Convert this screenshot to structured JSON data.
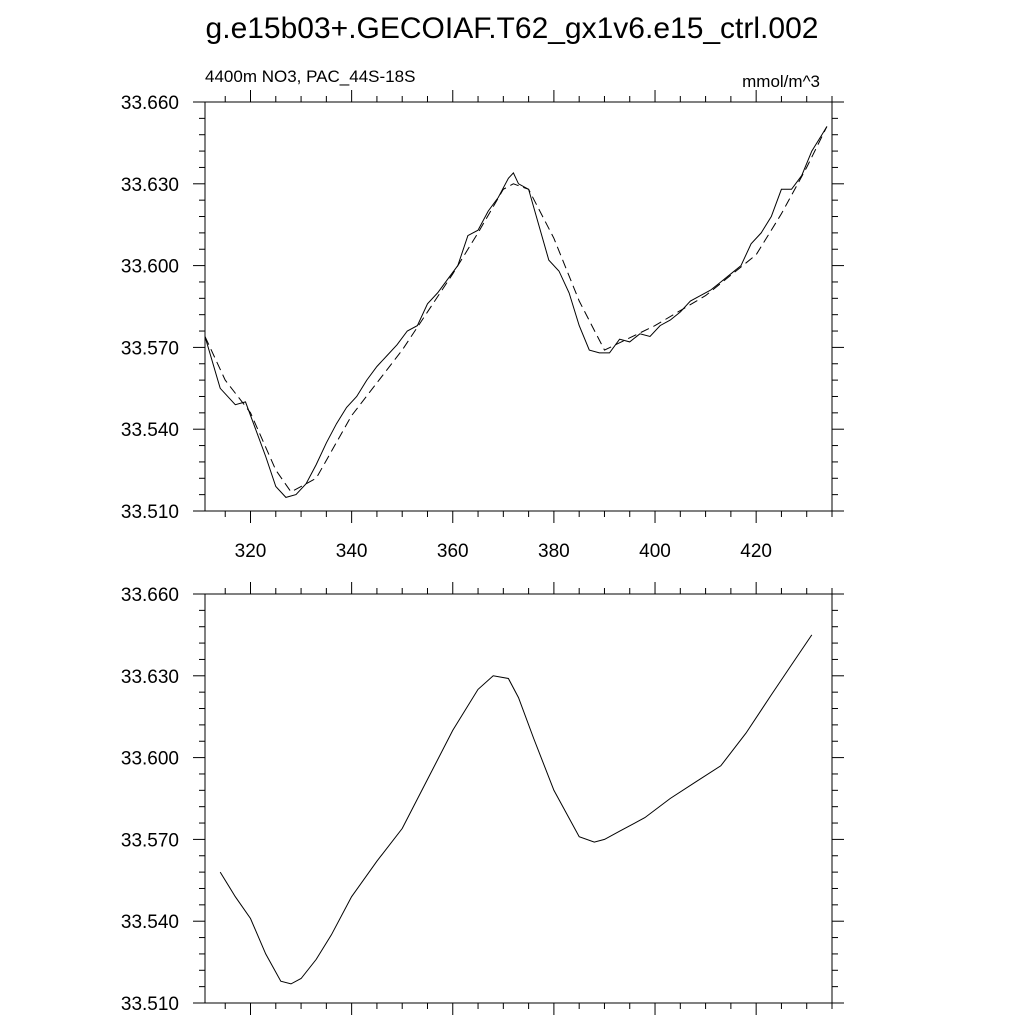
{
  "figure": {
    "title": "g.e15b03+.GECOIAF.T62_gx1v6.e15_ctrl.002"
  },
  "chart_data": [
    {
      "type": "line",
      "left_label": "4400m NO3, PAC_44S-18S",
      "right_label": "mmol/m^3",
      "xlim": [
        311,
        435
      ],
      "ylim": [
        33.51,
        33.66
      ],
      "x_ticks": [
        320,
        340,
        360,
        380,
        400,
        420
      ],
      "y_ticks": [
        "33.510",
        "33.540",
        "33.570",
        "33.600",
        "33.630",
        "33.660"
      ],
      "series": [
        {
          "style": "solid",
          "x": [
            311,
            314,
            317,
            319,
            321,
            323,
            325,
            327,
            329,
            331,
            333,
            335,
            337,
            339,
            341,
            343,
            345,
            347,
            349,
            351,
            353,
            355,
            357,
            359,
            361,
            363,
            365,
            367,
            369,
            371,
            372,
            373,
            375,
            377,
            379,
            381,
            383,
            385,
            387,
            389,
            391,
            393,
            395,
            397,
            399,
            401,
            403,
            405,
            407,
            409,
            411,
            413,
            415,
            417,
            419,
            421,
            423,
            425,
            427,
            429,
            431,
            433,
            434
          ],
          "y": [
            33.574,
            33.555,
            33.549,
            33.55,
            33.54,
            33.53,
            33.519,
            33.515,
            33.516,
            33.52,
            33.527,
            33.535,
            33.542,
            33.548,
            33.552,
            33.558,
            33.563,
            33.567,
            33.571,
            33.576,
            33.578,
            33.586,
            33.59,
            33.595,
            33.6,
            33.611,
            33.613,
            33.62,
            33.625,
            33.632,
            33.634,
            33.63,
            33.628,
            33.615,
            33.602,
            33.598,
            33.59,
            33.578,
            33.569,
            33.568,
            33.568,
            33.573,
            33.572,
            33.575,
            33.574,
            33.578,
            33.58,
            33.583,
            33.587,
            33.589,
            33.591,
            33.594,
            33.597,
            33.6,
            33.608,
            33.612,
            33.618,
            33.628,
            33.628,
            33.633,
            33.642,
            33.648,
            33.651
          ]
        },
        {
          "style": "dashed",
          "x": [
            311,
            315,
            320,
            325,
            328,
            333,
            340,
            350,
            360,
            365,
            370,
            372,
            375,
            380,
            385,
            390,
            400,
            410,
            420,
            425,
            430,
            434
          ],
          "y": [
            33.574,
            33.558,
            33.546,
            33.525,
            33.517,
            33.522,
            33.545,
            33.569,
            33.597,
            33.612,
            33.628,
            33.63,
            33.628,
            33.61,
            33.587,
            33.569,
            33.578,
            33.589,
            33.604,
            33.619,
            33.636,
            33.651
          ]
        }
      ]
    },
    {
      "type": "line",
      "xlim": [
        311,
        435
      ],
      "ylim": [
        33.51,
        33.66
      ],
      "y_ticks": [
        "33.510",
        "33.540",
        "33.570",
        "33.600",
        "33.630",
        "33.660"
      ],
      "series": [
        {
          "style": "solid",
          "x": [
            314,
            317,
            320,
            323,
            326,
            328,
            330,
            333,
            336,
            340,
            345,
            350,
            355,
            360,
            365,
            368,
            371,
            373,
            376,
            380,
            385,
            388,
            390,
            393,
            398,
            403,
            408,
            413,
            418,
            423,
            427,
            431
          ],
          "y": [
            33.558,
            33.549,
            33.541,
            33.528,
            33.518,
            33.517,
            33.519,
            33.526,
            33.535,
            33.549,
            33.562,
            33.574,
            33.592,
            33.61,
            33.625,
            33.63,
            33.629,
            33.622,
            33.607,
            33.588,
            33.571,
            33.569,
            33.57,
            33.573,
            33.578,
            33.585,
            33.591,
            33.597,
            33.609,
            33.623,
            33.634,
            33.645
          ]
        }
      ]
    }
  ]
}
